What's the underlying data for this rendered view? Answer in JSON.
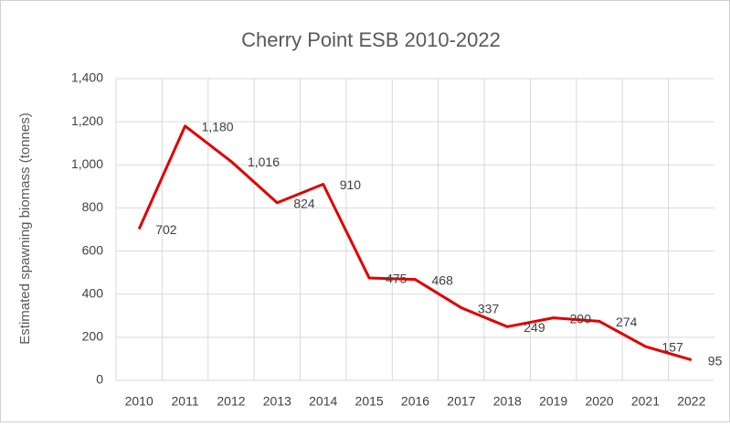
{
  "chart_data": {
    "type": "line",
    "title": "Cherry Point ESB 2010-2022",
    "y_label": "Estimated spawning biomass (tonnes)",
    "categories": [
      "2010",
      "2011",
      "2012",
      "2013",
      "2014",
      "2015",
      "2016",
      "2017",
      "2018",
      "2019",
      "2020",
      "2021",
      "2022"
    ],
    "series": [
      {
        "name": "ESB",
        "color": "#e00000",
        "values": [
          702,
          1180,
          1016,
          824,
          910,
          475,
          468,
          337,
          249,
          290,
          274,
          157,
          95
        ],
        "value_labels": [
          "702",
          "1,180",
          "1,016",
          "824",
          "910",
          "475",
          "468",
          "337",
          "249",
          "290",
          "274",
          "157",
          "95"
        ]
      }
    ],
    "ylim": [
      0,
      1400
    ],
    "yticks": [
      0,
      200,
      400,
      600,
      800,
      {
        "value": 1000,
        "label": "1,000"
      },
      {
        "value": 1200,
        "label": "1,200"
      },
      {
        "value": 1400,
        "label": "1,400"
      }
    ],
    "grid": true
  }
}
